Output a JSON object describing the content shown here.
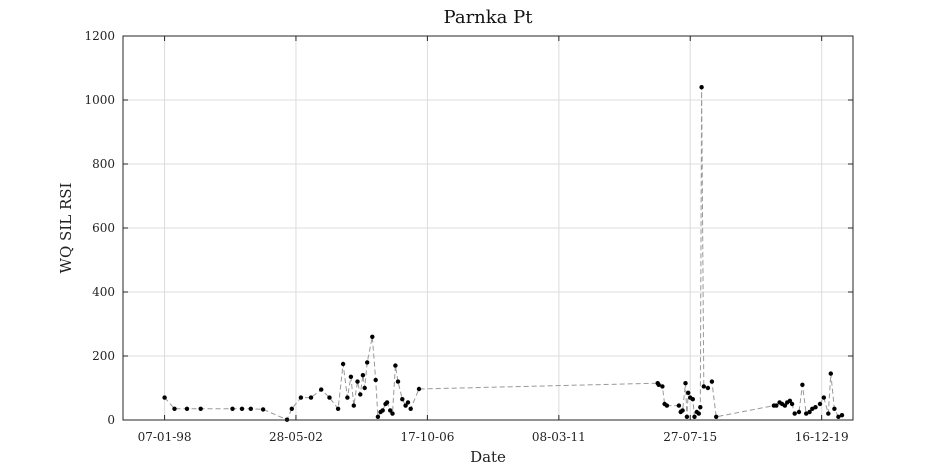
{
  "chart_data": {
    "type": "line",
    "title": "Parnka Pt",
    "xlabel": "Date",
    "ylabel": "WQ SIL RSI",
    "xlim": [
      "1996-08-18",
      "2021-01-01"
    ],
    "ylim": [
      0,
      1200
    ],
    "yticks": [
      0,
      200,
      400,
      600,
      800,
      1000,
      1200
    ],
    "xticks": [
      {
        "date": "1998-01-07",
        "label": "07-01-98"
      },
      {
        "date": "2002-05-28",
        "label": "28-05-02"
      },
      {
        "date": "2006-10-17",
        "label": "17-10-06"
      },
      {
        "date": "2011-03-08",
        "label": "08-03-11"
      },
      {
        "date": "2015-07-27",
        "label": "27-07-15"
      },
      {
        "date": "2019-12-16",
        "label": "16-12-19"
      }
    ],
    "grid": true,
    "legend": "none",
    "line_color": "#999999",
    "marker_color": "#000000",
    "series": [
      {
        "x": [
          "1998-01-07",
          "1998-05-08",
          "1998-10-07",
          "1999-03-23",
          "2000-04-14",
          "2000-08-08",
          "2000-11-23",
          "2001-04-22",
          "2002-02-08",
          "2002-04-08",
          "2002-07-28",
          "2002-11-28",
          "2003-04-01",
          "2003-07-11",
          "2003-10-24",
          "2003-12-24",
          "2004-02-14",
          "2004-03-28",
          "2004-05-03",
          "2004-06-17",
          "2004-07-21",
          "2004-08-22",
          "2004-09-12",
          "2004-10-13",
          "2004-12-14",
          "2005-01-24",
          "2005-02-20",
          "2005-03-25",
          "2005-04-20",
          "2005-05-24",
          "2005-06-12",
          "2005-07-20",
          "2005-08-17",
          "2005-09-22",
          "2005-10-24",
          "2005-12-15",
          "2006-01-24",
          "2006-02-22",
          "2006-03-27",
          "2006-07-07",
          "2014-06-26",
          "2014-07-07",
          "2014-08-22",
          "2014-09-17",
          "2014-10-16",
          "2015-03-11",
          "2015-04-02",
          "2015-04-25",
          "2015-05-31",
          "2015-06-16",
          "2015-07-02",
          "2015-07-27",
          "2015-08-28",
          "2015-09-17",
          "2015-10-15",
          "2015-11-08",
          "2015-11-27",
          "2015-12-13",
          "2016-01-09",
          "2016-02-28",
          "2016-04-16",
          "2016-06-08",
          "2018-05-12",
          "2018-06-11",
          "2018-07-21",
          "2018-08-21",
          "2018-09-24",
          "2018-10-22",
          "2018-11-24",
          "2018-12-20",
          "2019-01-21",
          "2019-03-14",
          "2019-04-25",
          "2019-06-10",
          "2019-07-22",
          "2019-08-24",
          "2019-10-02",
          "2019-11-26",
          "2020-01-11",
          "2020-03-06",
          "2020-04-05",
          "2020-05-19",
          "2020-07-07",
          "2020-08-20"
        ],
        "y": [
          70,
          35,
          35,
          35,
          35,
          35,
          35,
          33,
          1,
          35,
          70,
          70,
          95,
          70,
          35,
          175,
          70,
          135,
          45,
          120,
          80,
          140,
          100,
          180,
          260,
          125,
          10,
          25,
          30,
          50,
          55,
          30,
          20,
          170,
          120,
          65,
          45,
          55,
          35,
          97,
          115,
          110,
          105,
          50,
          45,
          45,
          25,
          30,
          115,
          10,
          85,
          70,
          65,
          10,
          25,
          20,
          40,
          1040,
          105,
          100,
          120,
          10,
          45,
          45,
          55,
          50,
          45,
          55,
          60,
          50,
          20,
          25,
          110,
          20,
          25,
          35,
          40,
          50,
          70,
          20,
          145,
          35,
          10,
          15
        ]
      }
    ]
  }
}
